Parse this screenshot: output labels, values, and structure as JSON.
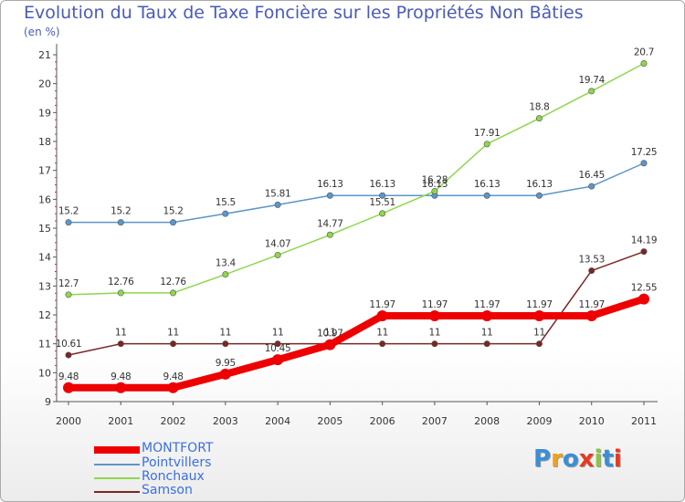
{
  "title": "Evolution du Taux de Taxe Foncière sur les Propriétés Non Bâties",
  "unit": "(en %)",
  "logo_text": "Proxiti",
  "chart_data": {
    "type": "line",
    "title": "Evolution du Taux de Taxe Foncière sur les Propriétés Non Bâties",
    "ylabel": "(en %)",
    "xlabel": "",
    "x": [
      "2000",
      "2001",
      "2002",
      "2003",
      "2004",
      "2005",
      "2006",
      "2007",
      "2008",
      "2009",
      "2010",
      "2011"
    ],
    "ylim": [
      9,
      21
    ],
    "yticks": [
      "9",
      "10",
      "11",
      "12",
      "13",
      "14",
      "15",
      "16",
      "17",
      "18",
      "19",
      "20",
      "21"
    ],
    "grid": false,
    "legend_position": "bottom-left",
    "series": [
      {
        "name": "MONTFORT",
        "color": "#ee0000",
        "width": 8,
        "marker": 6,
        "values": [
          9.48,
          9.48,
          9.48,
          9.95,
          10.45,
          10.97,
          11.97,
          11.97,
          11.97,
          11.97,
          11.97,
          12.55
        ],
        "labels": [
          "9.48",
          "9.48",
          "9.48",
          "9.95",
          "10.45",
          "10.97",
          "11.97",
          "11.97",
          "11.97",
          "11.97",
          "11.97",
          "12.55"
        ]
      },
      {
        "name": "Pointvillers",
        "color": "#5c96c8",
        "width": 1.5,
        "marker": 3.2,
        "values": [
          15.2,
          15.2,
          15.2,
          15.5,
          15.81,
          16.13,
          16.13,
          16.13,
          16.13,
          16.13,
          16.45,
          17.25
        ],
        "labels": [
          "15.2",
          "15.2",
          "15.2",
          "15.5",
          "15.81",
          "16.13",
          "16.13",
          "16.13",
          "16.13",
          "16.13",
          "16.45",
          "17.25"
        ]
      },
      {
        "name": "Ronchaux",
        "color": "#8ed64c",
        "width": 1.5,
        "marker": 3.2,
        "values": [
          12.7,
          12.76,
          12.76,
          13.4,
          14.07,
          14.77,
          15.51,
          16.28,
          17.91,
          18.8,
          19.74,
          20.7
        ],
        "labels": [
          "12.7",
          "12.76",
          "12.76",
          "13.4",
          "14.07",
          "14.77",
          "15.51",
          "16.28",
          "17.91",
          "18.8",
          "19.74",
          "20.7"
        ]
      },
      {
        "name": "Samson",
        "color": "#7a2626",
        "width": 1.5,
        "marker": 3.2,
        "values": [
          10.61,
          11,
          11,
          11,
          11,
          11,
          11,
          11,
          11,
          11,
          13.53,
          14.19
        ],
        "labels": [
          "10.61",
          "11",
          "11",
          "11",
          "11",
          "11",
          "11",
          "11",
          "11",
          "11",
          "13.53",
          "14.19"
        ]
      }
    ]
  }
}
